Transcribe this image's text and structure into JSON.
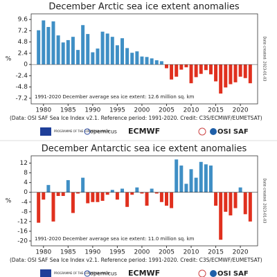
{
  "chart_data": [
    {
      "type": "bar",
      "title": "December Arctic sea ice extent anomalies",
      "ylabel": "%",
      "annotation": "1991-2020 December average sea ice extent: 12.6 million sq. km",
      "source": "(Data: OSI SAF Sea Ice Index v2.1.  Reference period: 1991-2020.  Credit: C3S/ECMWF/EUMETSAT)",
      "date_created": "Date created: 2023-01-03",
      "logos": [
        "PROGRAMME OF THE EUROPEAN UNION",
        "opernicus",
        "ECMWF",
        "OSI SAF"
      ],
      "positive_color": "#3f8fc5",
      "negative_color": "#e0301e",
      "x": [
        1979,
        1980,
        1981,
        1982,
        1983,
        1984,
        1985,
        1986,
        1987,
        1988,
        1989,
        1990,
        1991,
        1992,
        1993,
        1994,
        1995,
        1996,
        1997,
        1998,
        1999,
        2000,
        2001,
        2002,
        2003,
        2004,
        2005,
        2006,
        2007,
        2008,
        2009,
        2010,
        2011,
        2012,
        2013,
        2014,
        2015,
        2016,
        2017,
        2018,
        2019,
        2020,
        2021,
        2022
      ],
      "values": [
        7.3,
        9.4,
        8.0,
        9.2,
        6.2,
        4.7,
        5.2,
        5.9,
        3.1,
        8.4,
        6.5,
        2.6,
        3.4,
        7.0,
        6.6,
        5.9,
        4.1,
        5.6,
        3.5,
        2.5,
        2.8,
        1.7,
        1.6,
        1.3,
        0.9,
        0.7,
        -0.8,
        -3.2,
        -2.6,
        -1.1,
        -0.6,
        -4.0,
        -2.7,
        -2.0,
        -1.2,
        -2.1,
        -3.6,
        -6.2,
        -4.9,
        -4.2,
        -3.8,
        -2.6,
        -2.9,
        -4.0
      ],
      "xlim": [
        1977.5,
        2023.5
      ],
      "xticks": [
        1980,
        1985,
        1990,
        1995,
        2000,
        2005,
        2010,
        2015,
        2020
      ],
      "ylim": [
        -8.4,
        10.8
      ],
      "yticks": [
        -7.2,
        -4.8,
        -2.4,
        0,
        2.4,
        4.8,
        7.2,
        9.6
      ]
    },
    {
      "type": "bar",
      "title": "December Antarctic sea ice extent anomalies",
      "ylabel": "%",
      "annotation": "1991-2020 December average sea ice extent: 11.0 million sq. km",
      "source": "(Data: OSI SAF Sea Ice Index v2.1.  Reference period: 1991-2020.  Credit: C3S/ECMWF/EUMETSAT)",
      "date_created": "Date created: 2023-01-03",
      "logos": [
        "PROGRAMME OF THE EUROPEAN UNION",
        "opernicus",
        "ECMWF",
        "OSI SAF"
      ],
      "positive_color": "#3f8fc5",
      "negative_color": "#e0301e",
      "x": [
        1979,
        1980,
        1981,
        1982,
        1983,
        1984,
        1985,
        1986,
        1987,
        1988,
        1989,
        1990,
        1991,
        1992,
        1993,
        1994,
        1995,
        1996,
        1997,
        1998,
        1999,
        2000,
        2001,
        2002,
        2003,
        2004,
        2005,
        2006,
        2007,
        2008,
        2009,
        2010,
        2011,
        2012,
        2013,
        2014,
        2015,
        2016,
        2017,
        2018,
        2019,
        2020,
        2021,
        2022
      ],
      "values": [
        -12.5,
        -3,
        3,
        -12,
        -1.5,
        -1.5,
        5,
        -8.5,
        -0.5,
        6,
        -4.5,
        -4,
        -4,
        -3.5,
        -1,
        1,
        -3,
        1.5,
        -6,
        -1,
        2,
        -0.5,
        -5.5,
        1.5,
        -0.5,
        -4,
        -5.5,
        -6.5,
        13.5,
        11,
        3.5,
        9.5,
        6,
        12.5,
        11.5,
        11,
        -5.5,
        -19.5,
        -8,
        -9.5,
        -6.5,
        2,
        -9,
        -12
      ],
      "xlim": [
        1977.5,
        2023.5
      ],
      "xticks": [
        1980,
        1985,
        1990,
        1995,
        2000,
        2005,
        2010,
        2015,
        2020
      ],
      "ylim": [
        -22,
        15
      ],
      "yticks": [
        -20,
        -16,
        -12,
        -8,
        -4,
        0,
        4,
        8,
        12
      ]
    }
  ]
}
